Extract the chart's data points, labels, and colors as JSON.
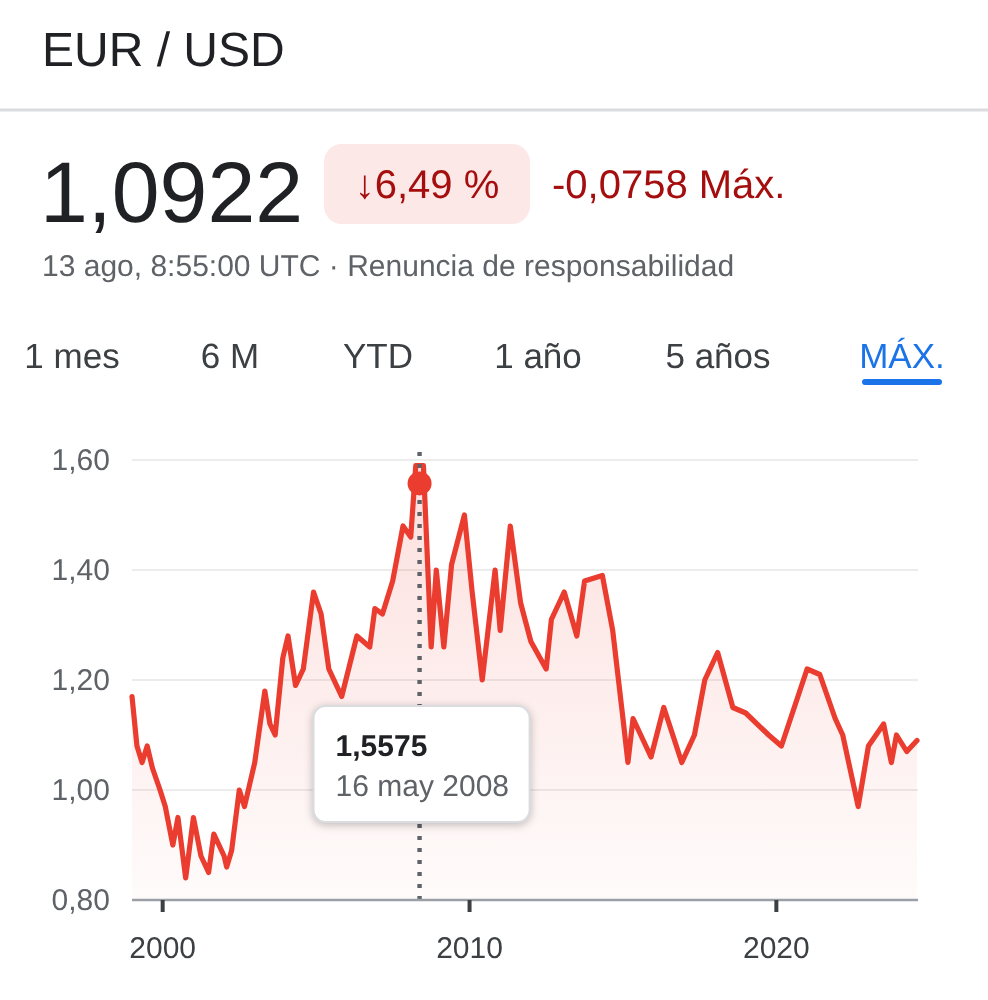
{
  "chart_data": {
    "type": "area",
    "title": "EUR / USD",
    "annotations": [
      "1,0922",
      "↓6,49 %",
      "-0,0758 Máx.",
      "13 ago, 8:55:00 UTC · Renuncia de responsabilidad",
      "1 mes",
      "6 M",
      "YTD",
      "1 año",
      "5 años",
      "MÁX.",
      "1,5575\n16 may 2008"
    ],
    "series": [
      {
        "color": "#ea3c2f",
        "x": [
          "1999-01",
          "1999-03",
          "1999-05",
          "1999-07",
          "1999-09",
          "1999-12",
          "2000-02",
          "2000-05",
          "2000-07",
          "2000-10",
          "2001-01",
          "2001-04",
          "2001-07",
          "2001-09",
          "2002-01",
          "2002-02",
          "2002-04",
          "2002-07",
          "2002-09",
          "2003-01",
          "2003-05",
          "2003-07",
          "2003-09",
          "2003-12",
          "2004-02",
          "2004-05",
          "2004-08",
          "2004-12",
          "2005-03",
          "2005-06",
          "2005-11",
          "2006-05",
          "2006-10",
          "2006-12",
          "2007-03",
          "2007-07",
          "2007-11",
          "2008-02",
          "2008-04",
          "2008-07",
          "2008-10",
          "2008-12",
          "2009-03",
          "2009-06",
          "2009-11",
          "2010-02",
          "2010-06",
          "2010-11",
          "2011-01",
          "2011-05",
          "2011-09",
          "2012-01",
          "2012-07",
          "2012-09",
          "2013-02",
          "2013-07",
          "2013-10",
          "2014-05",
          "2014-09",
          "2015-01",
          "2015-03",
          "2015-05",
          "2015-12",
          "2016-05",
          "2016-12",
          "2017-05",
          "2017-09",
          "2018-02",
          "2018-08",
          "2019-01",
          "2019-10",
          "2020-03",
          "2021-01",
          "2021-06",
          "2021-12",
          "2022-03",
          "2022-09",
          "2023-01",
          "2023-07",
          "2023-10",
          "2023-12",
          "2024-04",
          "2024-08"
        ],
        "values": [
          1.17,
          1.08,
          1.05,
          1.08,
          1.04,
          1.0,
          0.97,
          0.9,
          0.95,
          0.84,
          0.95,
          0.88,
          0.85,
          0.92,
          0.88,
          0.86,
          0.89,
          1.0,
          0.97,
          1.05,
          1.18,
          1.12,
          1.1,
          1.24,
          1.28,
          1.19,
          1.22,
          1.36,
          1.32,
          1.22,
          1.17,
          1.28,
          1.26,
          1.33,
          1.32,
          1.38,
          1.48,
          1.46,
          1.59,
          1.59,
          1.26,
          1.4,
          1.26,
          1.41,
          1.5,
          1.36,
          1.2,
          1.4,
          1.29,
          1.48,
          1.34,
          1.27,
          1.22,
          1.31,
          1.36,
          1.28,
          1.38,
          1.39,
          1.29,
          1.13,
          1.05,
          1.13,
          1.06,
          1.15,
          1.05,
          1.1,
          1.2,
          1.25,
          1.15,
          1.14,
          1.1,
          1.08,
          1.22,
          1.21,
          1.13,
          1.1,
          0.97,
          1.08,
          1.12,
          1.05,
          1.1,
          1.07,
          1.09
        ]
      },
      {
        "type": "scatter",
        "color": "#ea3c2f",
        "marker": "circle",
        "x": [
          "2008-05-16"
        ],
        "values": [
          1.5575
        ]
      }
    ],
    "xlim": [
      "1999-01",
      "2024-08-13"
    ],
    "xticks": [
      "2000",
      "2010",
      "2020"
    ],
    "ylim": [
      0.8,
      1.6
    ],
    "yticks": [
      {
        "value": 0.8,
        "label": "0,80"
      },
      {
        "value": 1.0,
        "label": "1,00"
      },
      {
        "value": 1.2,
        "label": "1,20"
      },
      {
        "value": 1.4,
        "label": "1,40"
      },
      {
        "value": 1.6,
        "label": "1,60"
      }
    ],
    "grid": "y",
    "ref_lines": [
      {
        "axis": "x",
        "value": "2008-05-16",
        "line_style": "dotted",
        "color": "#5f6368"
      }
    ]
  }
}
